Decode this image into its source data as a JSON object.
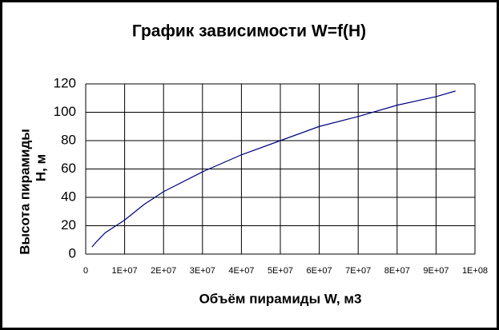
{
  "chart_data": {
    "type": "line",
    "title": "График зависимости W=f(H)",
    "xlabel": "Объём пирамиды W, м3",
    "ylabel": [
      "Высота пирамиды",
      "Н, м"
    ],
    "x": [
      1600000,
      2700000,
      5000000,
      10000000,
      15000000,
      20000000,
      30000000,
      40000000,
      50000000,
      60000000,
      70000000,
      80000000,
      90000000,
      95000000
    ],
    "values": [
      5,
      8.5,
      15,
      24,
      35,
      44,
      58,
      70,
      80,
      90,
      97,
      105,
      111,
      115
    ],
    "color": "#000080",
    "xlim": [
      0,
      100000000
    ],
    "xticks": [
      0,
      {
        "value": 10000000,
        "label": "1E+07"
      },
      {
        "value": 20000000,
        "label": "2E+07"
      },
      {
        "value": 30000000,
        "label": "3E+07"
      },
      {
        "value": 40000000,
        "label": "4E+07"
      },
      {
        "value": 50000000,
        "label": "5E+07"
      },
      {
        "value": 60000000,
        "label": "6E+07"
      },
      {
        "value": 70000000,
        "label": "7E+07"
      },
      {
        "value": 80000000,
        "label": "8E+07"
      },
      {
        "value": 90000000,
        "label": "9E+07"
      },
      {
        "value": 100000000,
        "label": "1E+08"
      }
    ],
    "ylim": [
      0,
      120
    ],
    "yticks": [
      0,
      20,
      40,
      60,
      80,
      100,
      120
    ],
    "grid": true
  }
}
